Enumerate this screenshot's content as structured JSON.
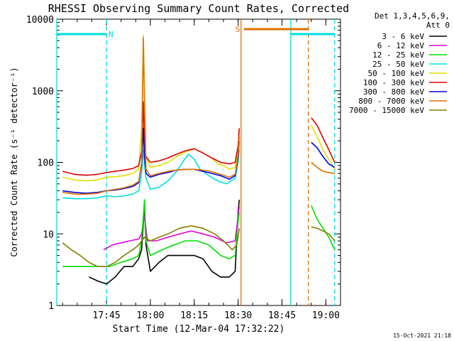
{
  "chart_data": {
    "type": "line",
    "title": "RHESSI Observing Summary Count Rates, Corrected",
    "xlabel": "Start Time (12-Mar-04 17:32:22)",
    "ylabel": "Corrected Count Rate (s⁻¹ detector⁻¹)",
    "y_scale": "log",
    "ylim": [
      1,
      10000
    ],
    "xlim_minutes": [
      -2,
      95
    ],
    "x_ticks": [
      {
        "label": "17:45",
        "minute": 15
      },
      {
        "label": "18:00",
        "minute": 30
      },
      {
        "label": "18:15",
        "minute": 45
      },
      {
        "label": "18:30",
        "minute": 60
      },
      {
        "label": "18:45",
        "minute": 75
      },
      {
        "label": "19:00",
        "minute": 90
      }
    ],
    "y_ticks": [
      {
        "label": "10000",
        "value": 10000
      },
      {
        "label": "1000",
        "value": 1000
      },
      {
        "label": "100",
        "value": 100
      },
      {
        "label": "10",
        "value": 10
      },
      {
        "label": "1",
        "value": 1
      }
    ],
    "legend_header": [
      "Det 1,3,4,5,6,9,",
      "Att 0"
    ],
    "legend_position": "right",
    "series": [
      {
        "name": "3 - 6 keV",
        "color": "#000000",
        "points": [
          [
            9,
            2.5
          ],
          [
            12,
            2.2
          ],
          [
            15,
            2
          ],
          [
            18,
            2.5
          ],
          [
            21,
            3.5
          ],
          [
            24,
            3.5
          ],
          [
            26,
            4.5
          ],
          [
            27,
            6
          ],
          [
            28,
            25
          ],
          [
            28.5,
            7
          ],
          [
            30,
            3
          ],
          [
            33,
            4
          ],
          [
            36,
            5
          ],
          [
            40,
            5
          ],
          [
            45,
            5
          ],
          [
            48,
            4.5
          ],
          [
            51,
            3
          ],
          [
            54,
            2.5
          ],
          [
            57,
            2.5
          ],
          [
            59,
            3
          ],
          [
            60,
            20
          ],
          [
            60.4,
            30
          ]
        ]
      },
      {
        "name": "6 - 12 keV",
        "color": "#e000e0",
        "points": [
          [
            14,
            6
          ],
          [
            17,
            7
          ],
          [
            20,
            7.5
          ],
          [
            23,
            8
          ],
          [
            26,
            8.5
          ],
          [
            27,
            10
          ],
          [
            28,
            18
          ],
          [
            29,
            8
          ],
          [
            32,
            8
          ],
          [
            36,
            9
          ],
          [
            40,
            10
          ],
          [
            44,
            11
          ],
          [
            48,
            10
          ],
          [
            52,
            9
          ],
          [
            56,
            7.5
          ],
          [
            59,
            8
          ],
          [
            60,
            18
          ],
          [
            60.4,
            24
          ]
        ]
      },
      {
        "name": "12 - 25 keV",
        "color": "#00e000",
        "points": [
          [
            0,
            3.5
          ],
          [
            4,
            3.5
          ],
          [
            8,
            3.5
          ],
          [
            12,
            3.5
          ],
          [
            16,
            3.5
          ],
          [
            20,
            4
          ],
          [
            24,
            4.5
          ],
          [
            26,
            5
          ],
          [
            27,
            8
          ],
          [
            28,
            30
          ],
          [
            28.5,
            8
          ],
          [
            30,
            5
          ],
          [
            34,
            6
          ],
          [
            38,
            7
          ],
          [
            42,
            8
          ],
          [
            46,
            8
          ],
          [
            50,
            7
          ],
          [
            54,
            5
          ],
          [
            57,
            4.5
          ],
          [
            59,
            5
          ],
          [
            60,
            15
          ],
          [
            60.4,
            20
          ],
          null,
          [
            85,
            25
          ],
          [
            87,
            16
          ],
          [
            89,
            12
          ],
          [
            91,
            9
          ],
          [
            93,
            6
          ]
        ]
      },
      {
        "name": "25 - 50 keV",
        "color": "#00e0e0",
        "points": [
          [
            0,
            32
          ],
          [
            4,
            31
          ],
          [
            8,
            31
          ],
          [
            12,
            32
          ],
          [
            15,
            34
          ],
          [
            18,
            33
          ],
          [
            21,
            34
          ],
          [
            24,
            36
          ],
          [
            26,
            40
          ],
          [
            27,
            70
          ],
          [
            27.6,
            150
          ],
          [
            28,
            100
          ],
          [
            28.5,
            60
          ],
          [
            30,
            42
          ],
          [
            33,
            45
          ],
          [
            36,
            55
          ],
          [
            39,
            75
          ],
          [
            41,
            100
          ],
          [
            43,
            130
          ],
          [
            45,
            110
          ],
          [
            47,
            80
          ],
          [
            50,
            65
          ],
          [
            53,
            55
          ],
          [
            56,
            50
          ],
          [
            59,
            60
          ],
          [
            60,
            100
          ],
          [
            60.4,
            150
          ]
        ]
      },
      {
        "name": "50 - 100 keV",
        "color": "#e0e000",
        "points": [
          [
            0,
            62
          ],
          [
            4,
            57
          ],
          [
            8,
            55
          ],
          [
            12,
            57
          ],
          [
            15,
            62
          ],
          [
            18,
            63
          ],
          [
            21,
            65
          ],
          [
            24,
            70
          ],
          [
            26,
            80
          ],
          [
            27,
            300
          ],
          [
            27.6,
            6000
          ],
          [
            28,
            800
          ],
          [
            28.5,
            120
          ],
          [
            30,
            85
          ],
          [
            33,
            90
          ],
          [
            36,
            100
          ],
          [
            39,
            120
          ],
          [
            42,
            140
          ],
          [
            45,
            155
          ],
          [
            48,
            135
          ],
          [
            51,
            115
          ],
          [
            53,
            95
          ],
          [
            55,
            90
          ],
          [
            57,
            80
          ],
          [
            59,
            85
          ],
          [
            60,
            150
          ],
          [
            60.4,
            270
          ],
          null,
          [
            85,
            330
          ],
          [
            87,
            230
          ],
          [
            89,
            150
          ],
          [
            91,
            110
          ],
          [
            93,
            80
          ]
        ]
      },
      {
        "name": "100 - 300 keV",
        "color": "#e00000",
        "points": [
          [
            0,
            75
          ],
          [
            4,
            68
          ],
          [
            8,
            66
          ],
          [
            12,
            68
          ],
          [
            15,
            72
          ],
          [
            18,
            75
          ],
          [
            21,
            78
          ],
          [
            24,
            82
          ],
          [
            26,
            90
          ],
          [
            27,
            140
          ],
          [
            27.6,
            700
          ],
          [
            28,
            180
          ],
          [
            28.5,
            120
          ],
          [
            30,
            100
          ],
          [
            33,
            105
          ],
          [
            36,
            115
          ],
          [
            39,
            130
          ],
          [
            42,
            145
          ],
          [
            45,
            155
          ],
          [
            48,
            135
          ],
          [
            51,
            115
          ],
          [
            54,
            100
          ],
          [
            57,
            95
          ],
          [
            59,
            100
          ],
          [
            60,
            170
          ],
          [
            60.4,
            300
          ],
          null,
          [
            85,
            420
          ],
          [
            87,
            330
          ],
          [
            89,
            220
          ],
          [
            91,
            150
          ],
          [
            93,
            100
          ]
        ]
      },
      {
        "name": "300 - 800 keV",
        "color": "#0000e0",
        "points": [
          [
            0,
            40
          ],
          [
            4,
            38
          ],
          [
            8,
            37
          ],
          [
            12,
            38
          ],
          [
            15,
            40
          ],
          [
            18,
            41
          ],
          [
            21,
            43
          ],
          [
            24,
            46
          ],
          [
            26,
            52
          ],
          [
            27,
            95
          ],
          [
            27.6,
            300
          ],
          [
            28,
            120
          ],
          [
            28.5,
            70
          ],
          [
            30,
            62
          ],
          [
            33,
            68
          ],
          [
            36,
            72
          ],
          [
            39,
            78
          ],
          [
            42,
            80
          ],
          [
            45,
            80
          ],
          [
            48,
            75
          ],
          [
            51,
            70
          ],
          [
            54,
            65
          ],
          [
            57,
            58
          ],
          [
            59,
            65
          ],
          [
            60,
            120
          ],
          [
            60.4,
            200
          ],
          null,
          [
            85,
            190
          ],
          [
            87,
            160
          ],
          [
            89,
            120
          ],
          [
            91,
            95
          ],
          [
            93,
            85
          ]
        ]
      },
      {
        "name": "800 - 7000 keV",
        "color": "#e07000",
        "points": [
          [
            0,
            38
          ],
          [
            4,
            36
          ],
          [
            8,
            36
          ],
          [
            12,
            37
          ],
          [
            15,
            40
          ],
          [
            18,
            42
          ],
          [
            21,
            44
          ],
          [
            24,
            48
          ],
          [
            26,
            54
          ],
          [
            27,
            100
          ],
          [
            27.6,
            5500
          ],
          [
            28,
            700
          ],
          [
            28.5,
            80
          ],
          [
            30,
            65
          ],
          [
            33,
            70
          ],
          [
            36,
            75
          ],
          [
            39,
            78
          ],
          [
            42,
            80
          ],
          [
            45,
            80
          ],
          [
            48,
            78
          ],
          [
            51,
            74
          ],
          [
            54,
            68
          ],
          [
            57,
            62
          ],
          [
            59,
            68
          ],
          [
            60,
            130
          ],
          [
            60.4,
            230
          ],
          null,
          [
            85,
            100
          ],
          [
            87,
            85
          ],
          [
            89,
            75
          ],
          [
            91,
            72
          ],
          [
            93,
            70
          ]
        ]
      },
      {
        "name": "7000 - 15000 keV",
        "color": "#808000",
        "points": [
          [
            0,
            7.5
          ],
          [
            3,
            6
          ],
          [
            6,
            5
          ],
          [
            9,
            4
          ],
          [
            12,
            3.5
          ],
          [
            15,
            3.5
          ],
          [
            18,
            4
          ],
          [
            21,
            5
          ],
          [
            24,
            6
          ],
          [
            26,
            7
          ],
          [
            28,
            9
          ],
          [
            30,
            8
          ],
          [
            33,
            9
          ],
          [
            36,
            10
          ],
          [
            40,
            12
          ],
          [
            44,
            13
          ],
          [
            48,
            12
          ],
          [
            52,
            10
          ],
          [
            55,
            8
          ],
          [
            58,
            6
          ],
          [
            59.5,
            7
          ],
          [
            60,
            9
          ],
          [
            60.4,
            12
          ],
          null,
          [
            85,
            12.5
          ],
          [
            87,
            12
          ],
          [
            89,
            11
          ],
          [
            91,
            10
          ],
          [
            93,
            8
          ]
        ]
      }
    ],
    "attenuator_state_markers": [
      {
        "label": "N",
        "start_minute": -2,
        "end_minute": 15,
        "color": "#00e0e0"
      },
      {
        "label": "S",
        "start_minute": 62,
        "end_minute": 84,
        "color": "#e07000"
      },
      {
        "label": "",
        "start_minute": 78,
        "end_minute": 93,
        "color": "#00e0e0"
      }
    ],
    "vertical_lines": [
      {
        "minute": -2,
        "color": "#00e0e0",
        "style": "solid"
      },
      {
        "minute": 15,
        "color": "#00e0e0",
        "style": "dashed"
      },
      {
        "minute": 61,
        "color": "#e07000",
        "style": "solid"
      },
      {
        "minute": 78,
        "color": "#00e0e0",
        "style": "solid"
      },
      {
        "minute": 84,
        "color": "#e07000",
        "style": "dashed"
      },
      {
        "minute": 93,
        "color": "#00e0e0",
        "style": "dashed"
      }
    ],
    "footer_date": "15-Oct-2021 21:18"
  }
}
